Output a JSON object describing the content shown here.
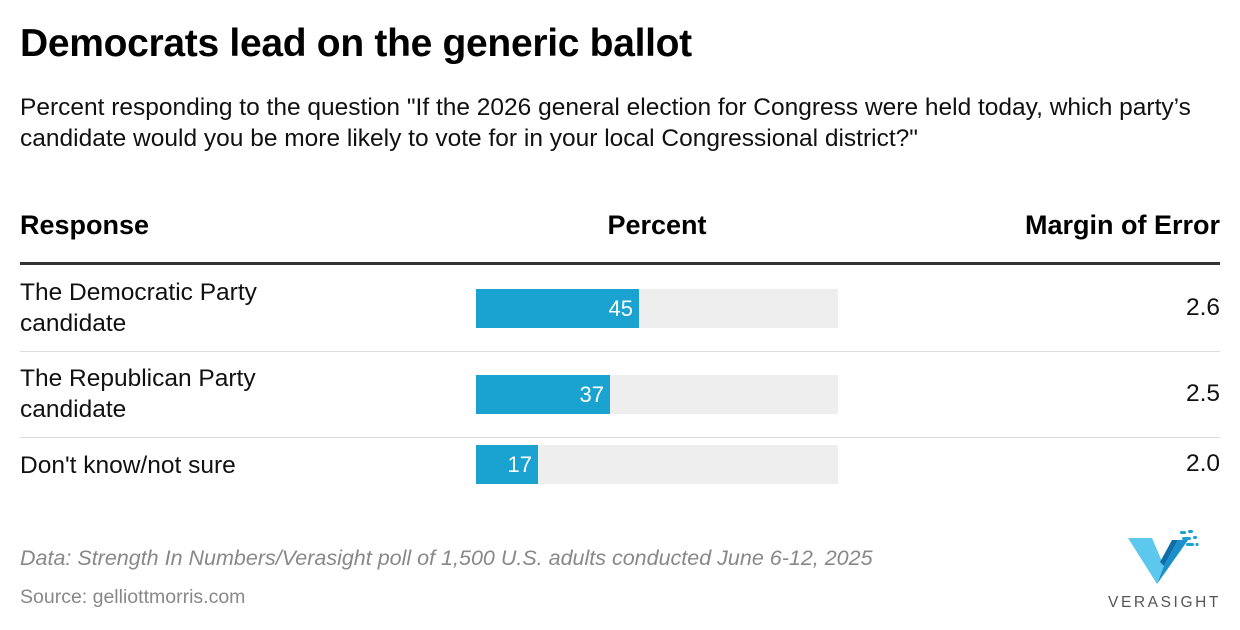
{
  "title": "Democrats lead on the generic ballot",
  "subtitle": "Percent responding to the question \"If the 2026 general election for Congress were held today, which party’s candidate would you be more likely to vote for in your local Congressional district?\"",
  "columns": {
    "response": "Response",
    "percent": "Percent",
    "moe": "Margin of Error"
  },
  "bar_max": 100,
  "colors": {
    "bar": "#1aa3d0",
    "track": "#eeeeee"
  },
  "chart_data": {
    "type": "table",
    "columns": [
      "Response",
      "Percent",
      "Margin of Error"
    ],
    "rows": [
      {
        "response": "The Democratic Party candidate",
        "percent": 45,
        "percent_label": "45",
        "moe": "2.6"
      },
      {
        "response": "The Republican Party candidate",
        "percent": 37,
        "percent_label": "37",
        "moe": "2.5"
      },
      {
        "response": "Don't know/not sure",
        "percent": 17,
        "percent_label": "17",
        "moe": "2.0"
      }
    ]
  },
  "footer": {
    "note": "Data: Strength In Numbers/Verasight poll of 1,500 U.S. adults conducted June 6-12, 2025",
    "source": "Source: gelliottmorris.com"
  },
  "logo": {
    "icon": "verasight-v-logo",
    "wordmark": "VERASIGHT"
  }
}
